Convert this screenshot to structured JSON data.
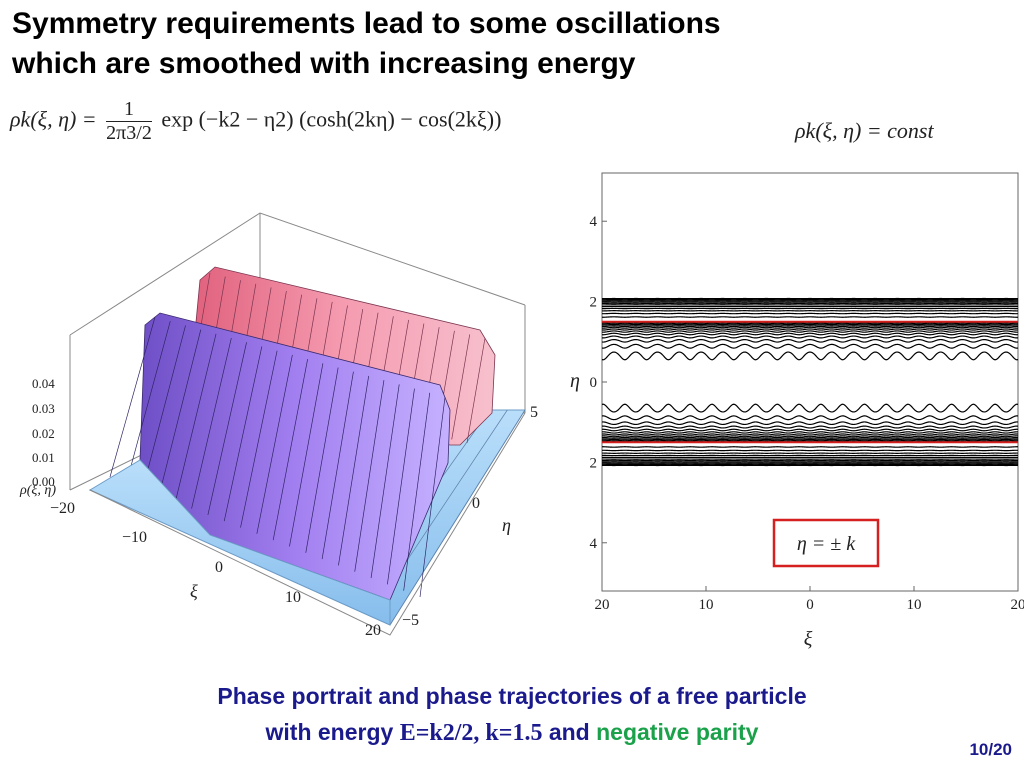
{
  "slide": {
    "title_line1": "Symmetry requirements lead to some oscillations",
    "title_line2": "which are smoothed with increasing energy",
    "formula_left": {
      "lhs": "ρk(ξ, η) =",
      "frac_num": "1",
      "frac_den": "2π3/2",
      "rhs": "exp (−k2 − η2) (cosh(2kη) − cos(2kξ))"
    },
    "formula_right": "ρk(ξ, η) = const",
    "caption_line1": "Phase portrait and phase trajectories of a free particle",
    "caption_line2_prefix": "with energy",
    "caption_energy": "E=k2/2, k=1.5",
    "caption_and": "and",
    "caption_parity": "negative parity",
    "page_number": "10/20"
  },
  "plot3d": {
    "z_ticks": [
      "0.04",
      "0.03",
      "0.02",
      "0.01",
      "0.00"
    ],
    "z_label": "ρ(ξ, η)",
    "xi_ticks": [
      "−20",
      "−10",
      "0",
      "10",
      "20"
    ],
    "xi_label": "ξ",
    "eta_ticks": [
      "5",
      "0",
      "−5"
    ],
    "eta_label": "η",
    "colors": {
      "top_surface": "#f07a92",
      "mid_surface": "#9b6fe0",
      "base_surface": "#9fcff5"
    }
  },
  "chart_data": {
    "type": "contour",
    "x_ticks": [
      "20",
      "10",
      "0",
      "10",
      "20"
    ],
    "y_ticks": [
      "4",
      "2",
      "0",
      "2",
      "4"
    ],
    "xlabel": "ξ",
    "ylabel": "η",
    "xlim": [
      -20,
      20
    ],
    "ylim": [
      -5.2,
      5.2
    ],
    "separatrix": {
      "values": [
        1.5,
        -1.5
      ],
      "color": "#d62020"
    },
    "legend_label": "η = ± k",
    "legend_color": "#d62020",
    "k": 1.5
  }
}
